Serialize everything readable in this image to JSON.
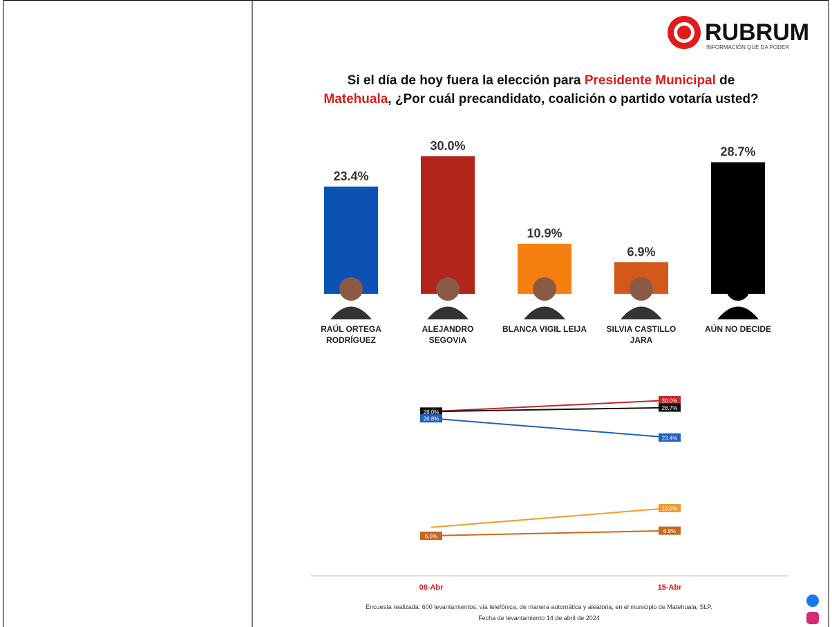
{
  "brand": {
    "name": "RUBRUM",
    "tagline": "INFORMACIÓN QUE DA PODER"
  },
  "chart_data": [
    {
      "type": "bar",
      "title": [
        {
          "text": "Si el día de hoy fuera la elección para ",
          "color": "#111111"
        },
        {
          "text": "Presidente Municipal",
          "color": "#e01b1b"
        },
        {
          "text": " de",
          "color": "#111111"
        },
        {
          "text": "Matehuala",
          "color": "#e01b1b"
        },
        {
          "text": ", ¿Por cuál precandidato, coalición o partido votaría usted?",
          "color": "#111111"
        }
      ],
      "categories": [
        "RAÚL ORTEGA RODRÍGUEZ",
        "ALEJANDRO SEGOVIA",
        "BLANCA VIGIL LEIJA",
        "SILVIA CASTILLO JARA",
        "AÚN NO DECIDE"
      ],
      "values": [
        23.4,
        30.0,
        10.9,
        6.9,
        28.7
      ],
      "value_labels": [
        "23.4%",
        "30.0%",
        "10.9%",
        "6.9%",
        "28.7%"
      ],
      "colors": [
        "#0b52b4",
        "#b2241c",
        "#f5800f",
        "#d2581b",
        "#000000"
      ]
    },
    {
      "type": "line",
      "x": [
        "08-Abr",
        "15-Abr"
      ],
      "series": [
        {
          "color": "#c4262a",
          "values": [
            28.0,
            30.0
          ],
          "value_labels": [
            null,
            "30.0%"
          ]
        },
        {
          "color": "#111111",
          "values": [
            28.0,
            28.7
          ],
          "value_labels": [
            "28.0%",
            "28.7%"
          ]
        },
        {
          "color": "#1f5fc0",
          "values": [
            26.8,
            23.4
          ],
          "value_labels": [
            "26.8%",
            "23.4%"
          ]
        },
        {
          "color": "#f39a2b",
          "values": [
            7.5,
            10.9
          ],
          "value_labels": [
            null,
            "10.9%"
          ]
        },
        {
          "color": "#c8681f",
          "values": [
            6.0,
            6.9
          ],
          "value_labels": [
            "6.0%",
            "6.9%"
          ]
        }
      ]
    }
  ],
  "footer": [
    "Encuesta realizada: 600 levantamientos, vía telefónica, de manera automática y aleatoria, en el municipio de Matehuala, SLP.",
    "Fecha de levantamiento 14 de abril de 2024"
  ]
}
